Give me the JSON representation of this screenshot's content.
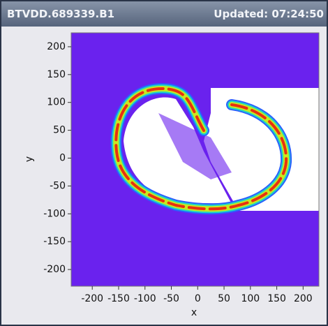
{
  "header": {
    "title": "BTVDD.689339.B1",
    "updated": "Updated: 07:24:50"
  },
  "chart_data": {
    "type": "image",
    "xlabel": "x",
    "ylabel": "y",
    "xlim": [
      -240,
      230
    ],
    "ylim": [
      -230,
      225
    ],
    "xticks": [
      -200,
      -150,
      -100,
      -50,
      0,
      50,
      100,
      150,
      200
    ],
    "yticks": [
      -200,
      -150,
      -100,
      -50,
      0,
      50,
      100,
      150,
      200
    ]
  }
}
